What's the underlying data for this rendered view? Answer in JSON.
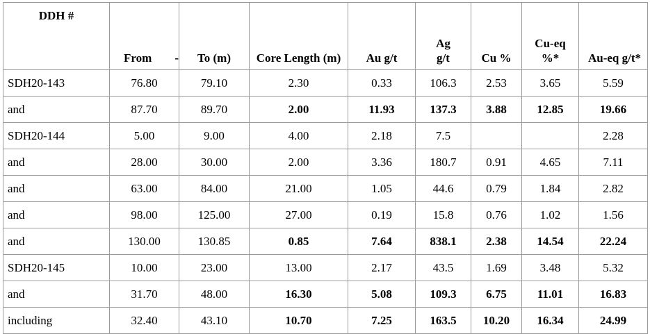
{
  "header": {
    "cells": [
      "DDH #",
      "From",
      "-",
      "To (m)",
      "Core Length (m)",
      "Au g/t",
      "Ag g/t",
      "Cu %",
      "Cu-eq %*",
      "Au-eq g/t*"
    ]
  },
  "table": {
    "rows": [
      [
        "SDH20-143",
        "76.80",
        "79.10",
        "2.30",
        "0.33",
        "106.3",
        "2.53",
        "3.65",
        "5.59"
      ],
      [
        "and",
        "87.70",
        "89.70",
        "2.00",
        "11.93",
        "137.3",
        "3.88",
        "12.85",
        "19.66"
      ],
      [
        "SDH20-144",
        "5.00",
        "9.00",
        "4.00",
        "2.18",
        "7.5",
        null,
        null,
        "2.28"
      ],
      [
        "and",
        "28.00",
        "30.00",
        "2.00",
        "3.36",
        "180.7",
        "0.91",
        "4.65",
        "7.11"
      ],
      [
        "and",
        "63.00",
        "84.00",
        "21.00",
        "1.05",
        "44.6",
        "0.79",
        "1.84",
        "2.82"
      ],
      [
        "and",
        "98.00",
        "125.00",
        "27.00",
        "0.19",
        "15.8",
        "0.76",
        "1.02",
        "1.56"
      ],
      [
        "and",
        "130.00",
        "130.85",
        "0.85",
        "7.64",
        "838.1",
        "2.38",
        "14.54",
        "22.24"
      ],
      [
        "SDH20-145",
        "10.00",
        "23.00",
        "13.00",
        "2.17",
        "43.5",
        "1.69",
        "3.48",
        "5.32"
      ],
      [
        "and",
        "31.70",
        "48.00",
        "16.30",
        "5.08",
        "109.3",
        "6.75",
        "11.01",
        "16.83"
      ],
      [
        "including",
        "32.40",
        "43.10",
        "10.70",
        "7.25",
        "163.5",
        "10.20",
        "16.34",
        "24.99"
      ]
    ]
  }
}
